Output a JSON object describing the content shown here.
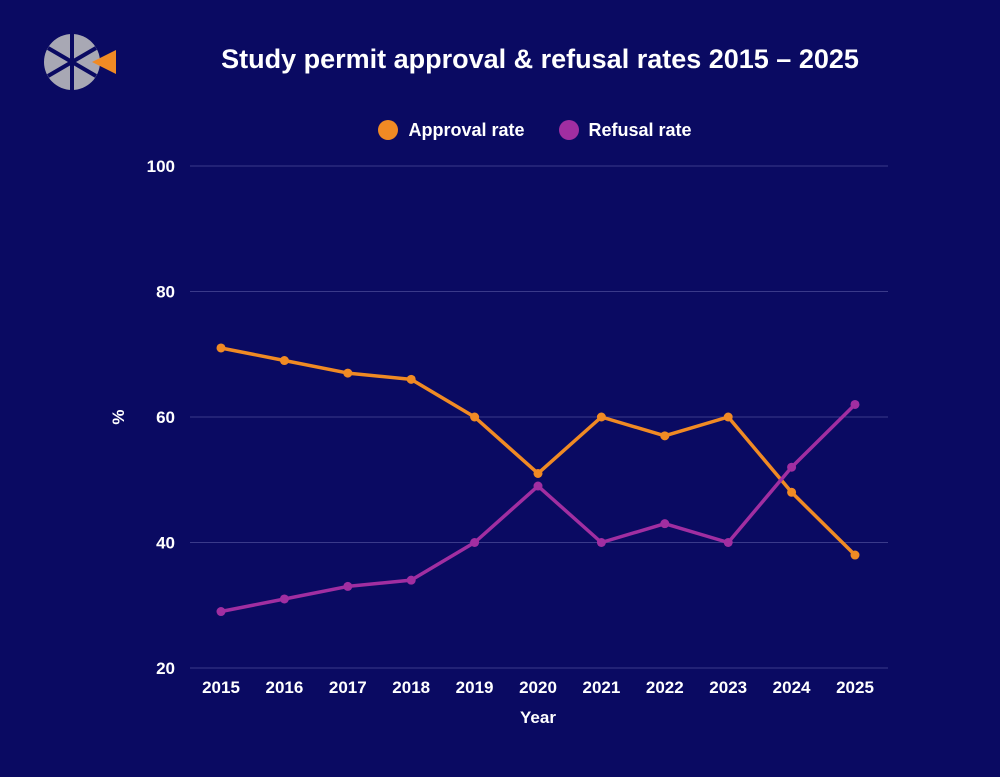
{
  "colors": {
    "background": "#0a0a62",
    "approval": "#f08a24",
    "refusal": "#a12ea1",
    "grid": "#3a3a8a",
    "logo_gray": "#a8a8b4",
    "logo_orange": "#f08a24"
  },
  "logo": {
    "icon": "cross-sections-logo"
  },
  "chart_data": {
    "type": "line",
    "title": "Study permit approval & refusal rates 2015 – 2025",
    "xlabel": "Year",
    "ylabel": "%",
    "x": [
      "2015",
      "2016",
      "2017",
      "2018",
      "2019",
      "2020",
      "2021",
      "2022",
      "2023",
      "2024",
      "2025"
    ],
    "ylim": [
      20,
      100
    ],
    "yticks": [
      "20",
      "40",
      "60",
      "80",
      "100"
    ],
    "grid": true,
    "legend_position": "top-center",
    "series": [
      {
        "name": "Approval rate",
        "color": "#f08a24",
        "values": [
          71,
          69,
          67,
          66,
          60,
          51,
          60,
          57,
          60,
          48,
          38
        ]
      },
      {
        "name": "Refusal rate",
        "color": "#a12ea1",
        "values": [
          29,
          31,
          33,
          34,
          40,
          49,
          40,
          43,
          40,
          52,
          62
        ]
      }
    ]
  }
}
